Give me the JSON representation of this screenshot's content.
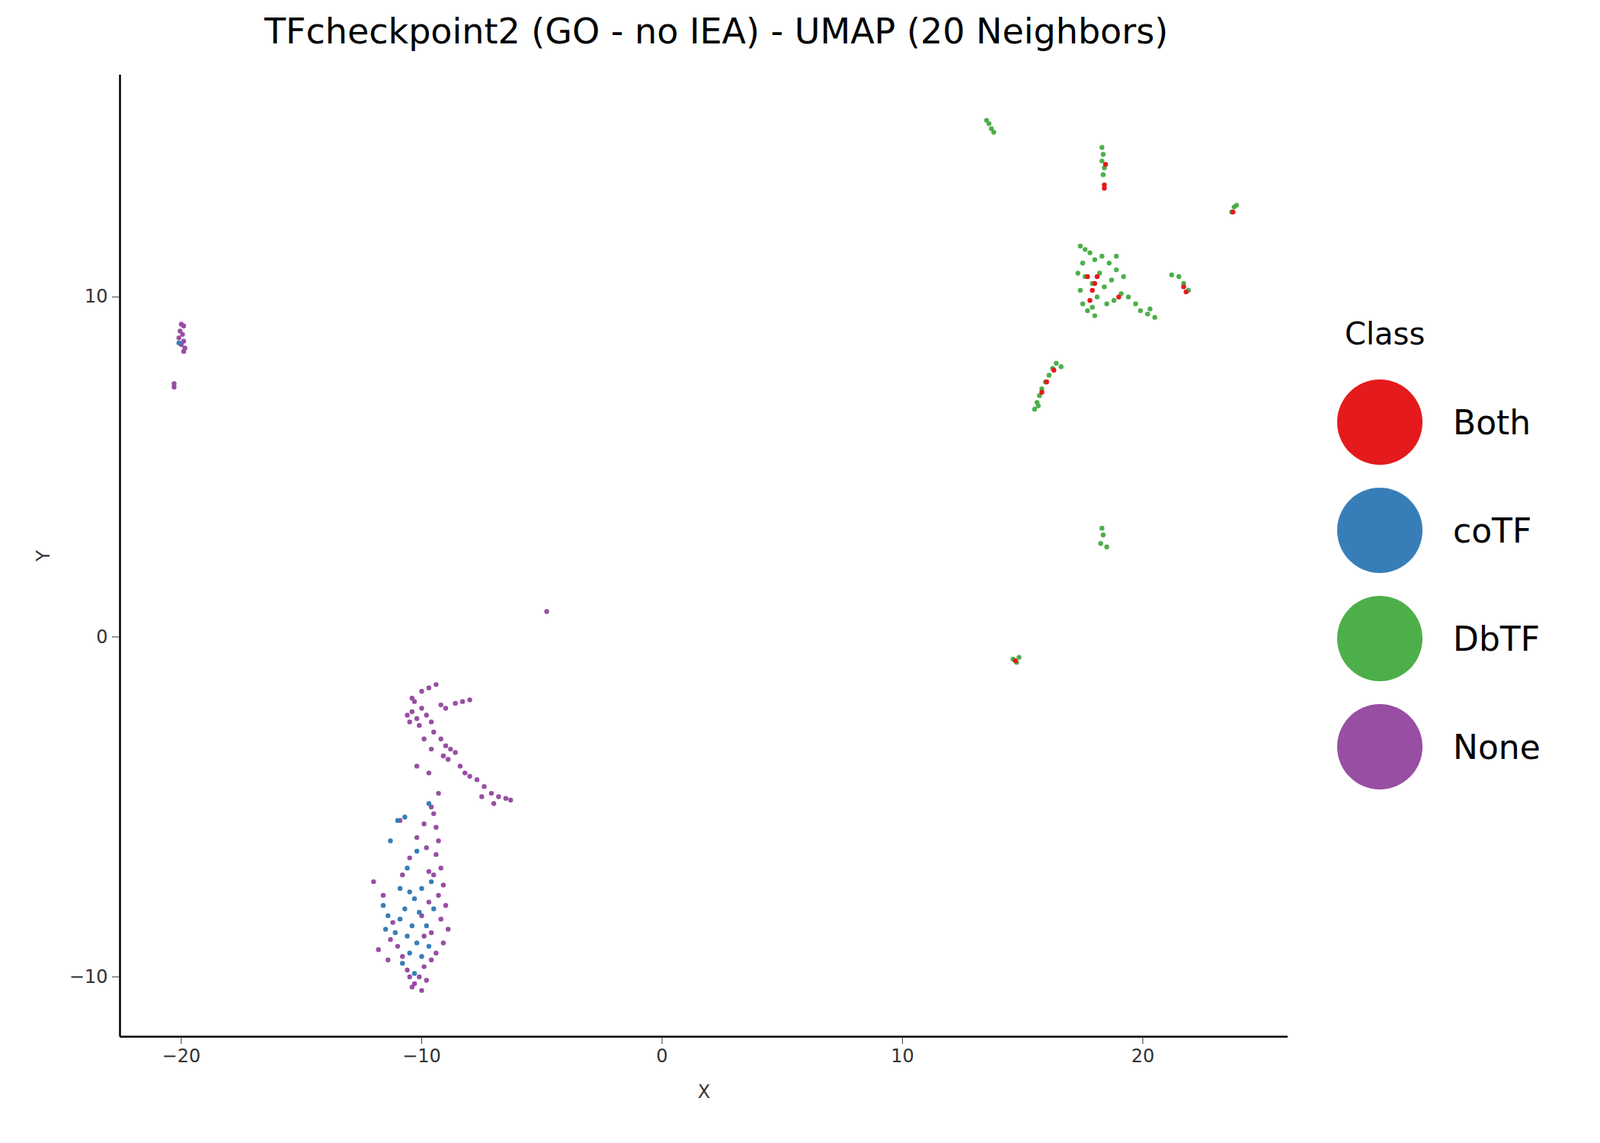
{
  "chart_data": {
    "type": "scatter",
    "title": "TFcheckpoint2 (GO - no IEA) - UMAP (20 Neighbors)",
    "x_label": "X",
    "y_label": "Y",
    "legend_title": "Class",
    "legend": "right",
    "xlim": [
      -22.55,
      26.04
    ],
    "ylim": [
      -11.76,
      16.53
    ],
    "xticks": [
      -20,
      -10,
      0,
      10,
      20
    ],
    "yticks": [
      -10,
      0,
      10
    ],
    "series": [
      {
        "name": "Both",
        "color": "#E41A1C",
        "values": [
          [
            18.45,
            13.9
          ],
          [
            18.4,
            13.3
          ],
          [
            18.4,
            13.2
          ],
          [
            23.75,
            12.5
          ],
          [
            17.7,
            10.6
          ],
          [
            17.9,
            10.2
          ],
          [
            17.8,
            9.9
          ],
          [
            18.0,
            10.4
          ],
          [
            18.1,
            10.6
          ],
          [
            19.0,
            10.0
          ],
          [
            21.7,
            10.3
          ],
          [
            21.8,
            10.15
          ],
          [
            16.0,
            7.5
          ],
          [
            16.3,
            7.85
          ],
          [
            15.8,
            7.2
          ],
          [
            14.7,
            -0.7
          ]
        ]
      },
      {
        "name": "coTF",
        "color": "#377EB8",
        "values": [
          [
            -20.1,
            8.65
          ],
          [
            -10.5,
            -7.5
          ],
          [
            -10.3,
            -7.7
          ],
          [
            -10.7,
            -8.0
          ],
          [
            -10.9,
            -8.3
          ],
          [
            -10.4,
            -8.5
          ],
          [
            -10.1,
            -8.1
          ],
          [
            -10.6,
            -8.8
          ],
          [
            -11.1,
            -8.7
          ],
          [
            -10.2,
            -9.0
          ],
          [
            -10.5,
            -9.3
          ],
          [
            -10.0,
            -9.4
          ],
          [
            -10.8,
            -9.6
          ],
          [
            -11.4,
            -8.2
          ],
          [
            -11.5,
            -8.6
          ],
          [
            -10.0,
            -7.4
          ],
          [
            -9.6,
            -7.2
          ],
          [
            -9.5,
            -8.0
          ],
          [
            -9.7,
            -9.1
          ],
          [
            -10.3,
            -9.9
          ],
          [
            -11.0,
            -5.4
          ],
          [
            -10.7,
            -5.3
          ],
          [
            -11.3,
            -6.0
          ],
          [
            -10.6,
            -6.8
          ],
          [
            -10.9,
            -7.4
          ],
          [
            -9.7,
            -4.9
          ],
          [
            -11.6,
            -7.9
          ],
          [
            -9.8,
            -8.5
          ],
          [
            -10.2,
            -6.3
          ]
        ]
      },
      {
        "name": "DbTF",
        "color": "#4DAF4A",
        "values": [
          [
            13.5,
            15.2
          ],
          [
            13.6,
            15.1
          ],
          [
            13.7,
            14.95
          ],
          [
            13.8,
            14.85
          ],
          [
            18.3,
            14.4
          ],
          [
            18.35,
            14.2
          ],
          [
            18.3,
            14.0
          ],
          [
            18.4,
            13.8
          ],
          [
            18.35,
            13.6
          ],
          [
            23.7,
            12.5
          ],
          [
            23.8,
            12.65
          ],
          [
            23.9,
            12.7
          ],
          [
            17.4,
            11.5
          ],
          [
            17.6,
            11.4
          ],
          [
            17.8,
            11.3
          ],
          [
            18.0,
            11.1
          ],
          [
            18.3,
            11.2
          ],
          [
            18.6,
            11.0
          ],
          [
            18.9,
            10.8
          ],
          [
            17.5,
            11.0
          ],
          [
            17.6,
            10.6
          ],
          [
            17.4,
            10.2
          ],
          [
            17.5,
            9.8
          ],
          [
            17.7,
            9.6
          ],
          [
            17.9,
            9.7
          ],
          [
            18.1,
            10.0
          ],
          [
            18.4,
            10.3
          ],
          [
            18.7,
            10.5
          ],
          [
            18.2,
            10.7
          ],
          [
            17.9,
            10.4
          ],
          [
            18.5,
            9.8
          ],
          [
            18.8,
            9.9
          ],
          [
            19.1,
            10.1
          ],
          [
            19.4,
            10.0
          ],
          [
            19.7,
            9.8
          ],
          [
            19.9,
            9.6
          ],
          [
            20.2,
            9.5
          ],
          [
            20.5,
            9.4
          ],
          [
            20.3,
            9.65
          ],
          [
            18.9,
            11.2
          ],
          [
            19.2,
            10.6
          ],
          [
            17.3,
            10.7
          ],
          [
            18.0,
            9.45
          ],
          [
            21.5,
            10.6
          ],
          [
            21.7,
            10.4
          ],
          [
            21.9,
            10.2
          ],
          [
            21.2,
            10.65
          ],
          [
            15.5,
            6.7
          ],
          [
            15.6,
            6.9
          ],
          [
            15.7,
            7.1
          ],
          [
            15.8,
            7.3
          ],
          [
            15.95,
            7.5
          ],
          [
            16.1,
            7.7
          ],
          [
            16.25,
            7.9
          ],
          [
            16.4,
            8.05
          ],
          [
            16.6,
            7.95
          ],
          [
            15.65,
            6.8
          ],
          [
            18.3,
            3.2
          ],
          [
            18.35,
            3.0
          ],
          [
            18.25,
            2.75
          ],
          [
            18.5,
            2.65
          ],
          [
            14.6,
            -0.65
          ],
          [
            14.75,
            -0.75
          ],
          [
            14.85,
            -0.6
          ]
        ]
      },
      {
        "name": "None",
        "color": "#984EA3",
        "values": [
          [
            -20,
            9.2
          ],
          [
            -19.9,
            9.15
          ],
          [
            -20.05,
            9.0
          ],
          [
            -19.95,
            8.9
          ],
          [
            -20.1,
            8.8
          ],
          [
            -19.9,
            8.7
          ],
          [
            -20,
            8.6
          ],
          [
            -19.85,
            8.5
          ],
          [
            -19.9,
            8.4
          ],
          [
            -20.3,
            7.45
          ],
          [
            -20.3,
            7.35
          ],
          [
            -4.8,
            0.75
          ],
          [
            -10.6,
            -2.3
          ],
          [
            -10.4,
            -2.2
          ],
          [
            -10.2,
            -2.4
          ],
          [
            -10.0,
            -2.1
          ],
          [
            -9.8,
            -2.3
          ],
          [
            -10.5,
            -2.5
          ],
          [
            -10.1,
            -2.6
          ],
          [
            -9.6,
            -2.5
          ],
          [
            -10.3,
            -1.9
          ],
          [
            -10.0,
            -1.6
          ],
          [
            -9.7,
            -1.5
          ],
          [
            -9.4,
            -1.4
          ],
          [
            -9.2,
            -2.0
          ],
          [
            -9.0,
            -2.1
          ],
          [
            -8.6,
            -1.95
          ],
          [
            -8.3,
            -1.9
          ],
          [
            -8.0,
            -1.85
          ],
          [
            -9.5,
            -2.8
          ],
          [
            -9.2,
            -3.0
          ],
          [
            -9.0,
            -3.2
          ],
          [
            -8.8,
            -3.3
          ],
          [
            -8.6,
            -3.4
          ],
          [
            -9.1,
            -3.5
          ],
          [
            -8.9,
            -3.6
          ],
          [
            -8.4,
            -3.8
          ],
          [
            -8.2,
            -4.0
          ],
          [
            -8.0,
            -4.1
          ],
          [
            -7.7,
            -4.2
          ],
          [
            -7.4,
            -4.4
          ],
          [
            -7.1,
            -4.6
          ],
          [
            -6.8,
            -4.7
          ],
          [
            -6.5,
            -4.75
          ],
          [
            -6.3,
            -4.8
          ],
          [
            -7.0,
            -4.9
          ],
          [
            -7.5,
            -4.7
          ],
          [
            -9.9,
            -3.0
          ],
          [
            -9.6,
            -3.3
          ],
          [
            -10.4,
            -1.8
          ],
          [
            -10.2,
            -3.8
          ],
          [
            -9.7,
            -4.0
          ],
          [
            -9.3,
            -4.6
          ],
          [
            -9.6,
            -5.0
          ],
          [
            -9.5,
            -5.2
          ],
          [
            -9.4,
            -5.6
          ],
          [
            -9.3,
            -6.0
          ],
          [
            -9.4,
            -6.4
          ],
          [
            -9.2,
            -6.8
          ],
          [
            -9.5,
            -7.0
          ],
          [
            -9.1,
            -7.3
          ],
          [
            -9.3,
            -7.6
          ],
          [
            -9.0,
            -7.9
          ],
          [
            -9.2,
            -8.3
          ],
          [
            -8.9,
            -8.6
          ],
          [
            -9.1,
            -9.0
          ],
          [
            -9.4,
            -9.3
          ],
          [
            -9.6,
            -9.5
          ],
          [
            -9.9,
            -9.7
          ],
          [
            -10.1,
            -10.0
          ],
          [
            -10.3,
            -10.2
          ],
          [
            -10.0,
            -10.4
          ],
          [
            -10.4,
            -10.3
          ],
          [
            -10.6,
            -9.8
          ],
          [
            -10.8,
            -9.4
          ],
          [
            -11.0,
            -9.1
          ],
          [
            -11.3,
            -8.9
          ],
          [
            -11.8,
            -9.2
          ],
          [
            -12.0,
            -7.2
          ],
          [
            -11.6,
            -7.6
          ],
          [
            -10.8,
            -7.0
          ],
          [
            -10.5,
            -6.5
          ],
          [
            -10.9,
            -5.4
          ],
          [
            -10.2,
            -5.9
          ],
          [
            -9.8,
            -6.2
          ],
          [
            -9.7,
            -7.8
          ],
          [
            -10.0,
            -8.2
          ],
          [
            -9.9,
            -8.8
          ],
          [
            -9.6,
            -8.7
          ],
          [
            -9.8,
            -10.1
          ],
          [
            -10.5,
            -10.0
          ],
          [
            -11.2,
            -8.4
          ],
          [
            -9.7,
            -6.9
          ],
          [
            -9.9,
            -5.5
          ],
          [
            -11.4,
            -9.5
          ]
        ]
      }
    ]
  }
}
